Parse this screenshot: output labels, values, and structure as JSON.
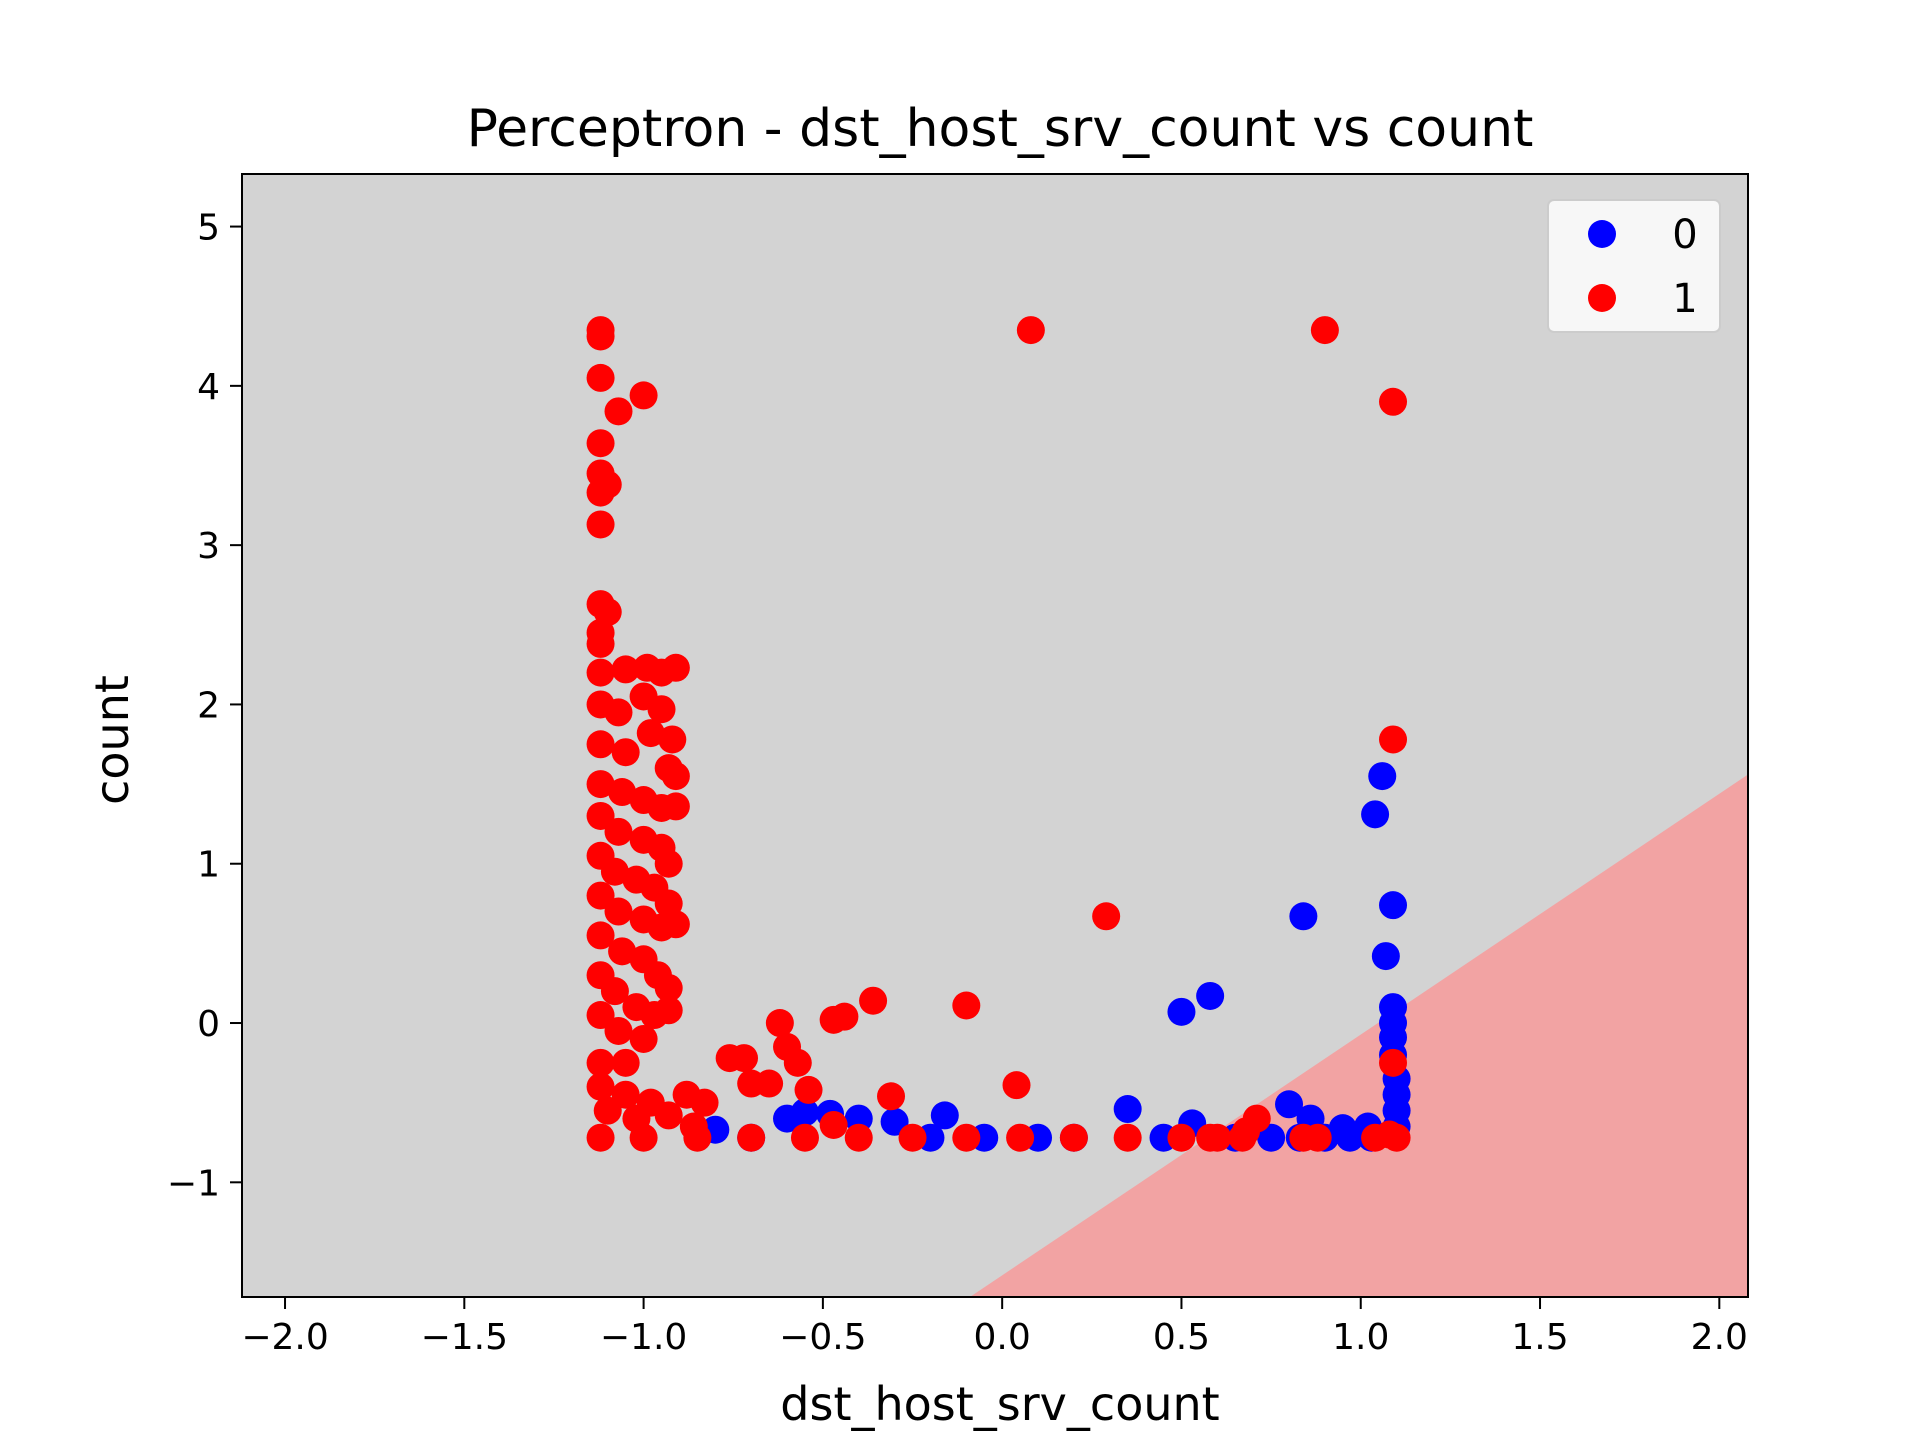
{
  "chart_data": {
    "type": "scatter",
    "title": "Perceptron - dst_host_srv_count vs count",
    "xlabel": "dst_host_srv_count",
    "ylabel": "count",
    "xlim": [
      -2.12,
      2.08
    ],
    "ylim": [
      -1.72,
      5.33
    ],
    "xticks": [
      -2.0,
      -1.5,
      -1.0,
      -0.5,
      0.0,
      0.5,
      1.0,
      1.5,
      2.0
    ],
    "xtick_labels": [
      "−2.0",
      "−1.5",
      "−1.0",
      "−0.5",
      "0.0",
      "0.5",
      "1.0",
      "1.5",
      "2.0"
    ],
    "yticks": [
      -1,
      0,
      1,
      2,
      3,
      4,
      5
    ],
    "ytick_labels": [
      "−1",
      "0",
      "1",
      "2",
      "3",
      "4",
      "5"
    ],
    "grid": false,
    "legend_position": "top-right",
    "decision_regions": {
      "class_0_color": "#d3d3d3",
      "class_1_color": "#f2a3a3",
      "boundary": [
        [
          -0.09,
          -1.72
        ],
        [
          2.08,
          1.56
        ]
      ]
    },
    "series": [
      {
        "name": "0",
        "color": "#0000ff",
        "points": [
          [
            1.06,
            1.55
          ],
          [
            1.04,
            1.31
          ],
          [
            1.09,
            0.74
          ],
          [
            1.07,
            0.42
          ],
          [
            0.84,
            0.67
          ],
          [
            0.58,
            0.17
          ],
          [
            0.5,
            0.07
          ],
          [
            1.09,
            0.1
          ],
          [
            1.09,
            0.0
          ],
          [
            1.09,
            -0.09
          ],
          [
            1.09,
            -0.2
          ],
          [
            1.1,
            -0.35
          ],
          [
            1.1,
            -0.45
          ],
          [
            1.1,
            -0.55
          ],
          [
            1.1,
            -0.65
          ],
          [
            0.35,
            -0.54
          ],
          [
            0.8,
            -0.51
          ],
          [
            0.53,
            -0.63
          ],
          [
            0.86,
            -0.6
          ],
          [
            -0.48,
            -0.57
          ],
          [
            -0.16,
            -0.58
          ],
          [
            -0.6,
            -0.6
          ],
          [
            -0.3,
            -0.62
          ],
          [
            -0.55,
            -0.56
          ],
          [
            -0.4,
            -0.6
          ],
          [
            0.95,
            -0.66
          ],
          [
            1.02,
            -0.65
          ],
          [
            -0.8,
            -0.67
          ],
          [
            0.2,
            -0.72
          ],
          [
            0.65,
            -0.72
          ],
          [
            0.75,
            -0.72
          ],
          [
            0.83,
            -0.72
          ],
          [
            0.9,
            -0.72
          ],
          [
            0.97,
            -0.72
          ],
          [
            1.03,
            -0.72
          ],
          [
            -0.7,
            -0.72
          ],
          [
            -0.2,
            -0.72
          ],
          [
            0.1,
            -0.72
          ],
          [
            0.45,
            -0.72
          ],
          [
            -0.05,
            -0.72
          ]
        ]
      },
      {
        "name": "1",
        "color": "#ff0000",
        "points": [
          [
            -1.12,
            4.35
          ],
          [
            -1.12,
            4.31
          ],
          [
            -1.12,
            4.05
          ],
          [
            -1.07,
            3.84
          ],
          [
            -1.0,
            3.94
          ],
          [
            -1.12,
            3.64
          ],
          [
            -1.12,
            3.45
          ],
          [
            -1.1,
            3.38
          ],
          [
            -1.12,
            3.33
          ],
          [
            -1.12,
            3.13
          ],
          [
            0.08,
            4.35
          ],
          [
            0.9,
            4.35
          ],
          [
            1.09,
            3.9
          ],
          [
            1.09,
            1.78
          ],
          [
            0.29,
            0.67
          ],
          [
            -1.12,
            2.63
          ],
          [
            -1.1,
            2.58
          ],
          [
            -1.12,
            2.45
          ],
          [
            -1.12,
            2.38
          ],
          [
            -1.12,
            2.2
          ],
          [
            -1.05,
            2.22
          ],
          [
            -0.99,
            2.23
          ],
          [
            -0.95,
            2.2
          ],
          [
            -0.91,
            2.23
          ],
          [
            -1.12,
            2.0
          ],
          [
            -1.07,
            1.95
          ],
          [
            -1.0,
            2.05
          ],
          [
            -0.95,
            1.97
          ],
          [
            -0.92,
            1.78
          ],
          [
            -1.12,
            1.75
          ],
          [
            -1.05,
            1.7
          ],
          [
            -0.98,
            1.82
          ],
          [
            -0.93,
            1.6
          ],
          [
            -0.91,
            1.55
          ],
          [
            -1.12,
            1.5
          ],
          [
            -1.06,
            1.45
          ],
          [
            -1.0,
            1.4
          ],
          [
            -0.95,
            1.35
          ],
          [
            -0.91,
            1.36
          ],
          [
            -1.12,
            1.3
          ],
          [
            -1.07,
            1.2
          ],
          [
            -1.0,
            1.15
          ],
          [
            -0.95,
            1.1
          ],
          [
            -0.93,
            1.0
          ],
          [
            -1.12,
            1.05
          ],
          [
            -1.08,
            0.95
          ],
          [
            -1.02,
            0.9
          ],
          [
            -0.97,
            0.85
          ],
          [
            -0.93,
            0.75
          ],
          [
            -1.12,
            0.8
          ],
          [
            -1.07,
            0.7
          ],
          [
            -1.0,
            0.65
          ],
          [
            -0.95,
            0.6
          ],
          [
            -0.91,
            0.62
          ],
          [
            -1.12,
            0.55
          ],
          [
            -1.06,
            0.45
          ],
          [
            -1.0,
            0.4
          ],
          [
            -0.96,
            0.3
          ],
          [
            -0.93,
            0.22
          ],
          [
            -1.12,
            0.3
          ],
          [
            -1.08,
            0.2
          ],
          [
            -1.02,
            0.1
          ],
          [
            -0.97,
            0.05
          ],
          [
            -0.93,
            0.08
          ],
          [
            -1.12,
            0.05
          ],
          [
            -1.07,
            -0.05
          ],
          [
            -1.0,
            -0.1
          ],
          [
            -1.05,
            -0.25
          ],
          [
            -1.12,
            -0.25
          ],
          [
            -1.12,
            -0.4
          ],
          [
            -1.05,
            -0.45
          ],
          [
            -0.98,
            -0.5
          ],
          [
            -1.1,
            -0.55
          ],
          [
            -1.02,
            -0.6
          ],
          [
            -0.88,
            -0.45
          ],
          [
            -0.83,
            -0.5
          ],
          [
            -0.93,
            -0.58
          ],
          [
            -0.86,
            -0.65
          ],
          [
            -0.57,
            -0.25
          ],
          [
            -0.6,
            -0.15
          ],
          [
            -0.62,
            0.0
          ],
          [
            -0.72,
            -0.22
          ],
          [
            -0.76,
            -0.22
          ],
          [
            -0.7,
            -0.38
          ],
          [
            -0.65,
            -0.38
          ],
          [
            -0.54,
            -0.42
          ],
          [
            -0.47,
            0.02
          ],
          [
            -0.44,
            0.04
          ],
          [
            -0.36,
            0.14
          ],
          [
            -0.1,
            0.11
          ],
          [
            -0.31,
            -0.46
          ],
          [
            0.04,
            -0.39
          ],
          [
            -0.47,
            -0.64
          ],
          [
            0.68,
            -0.68
          ],
          [
            0.71,
            -0.6
          ],
          [
            1.09,
            -0.25
          ],
          [
            1.08,
            -0.7
          ],
          [
            1.04,
            -0.72
          ],
          [
            0.84,
            -0.72
          ],
          [
            0.88,
            -0.72
          ],
          [
            0.6,
            -0.72
          ],
          [
            -1.12,
            -0.72
          ],
          [
            -1.0,
            -0.72
          ],
          [
            -0.85,
            -0.72
          ],
          [
            -0.7,
            -0.72
          ],
          [
            -0.55,
            -0.72
          ],
          [
            -0.4,
            -0.72
          ],
          [
            -0.25,
            -0.72
          ],
          [
            -0.1,
            -0.72
          ],
          [
            0.05,
            -0.72
          ],
          [
            0.2,
            -0.72
          ],
          [
            0.35,
            -0.72
          ],
          [
            0.5,
            -0.72
          ],
          [
            0.58,
            -0.72
          ],
          [
            0.67,
            -0.72
          ],
          [
            1.1,
            -0.72
          ]
        ]
      }
    ]
  }
}
